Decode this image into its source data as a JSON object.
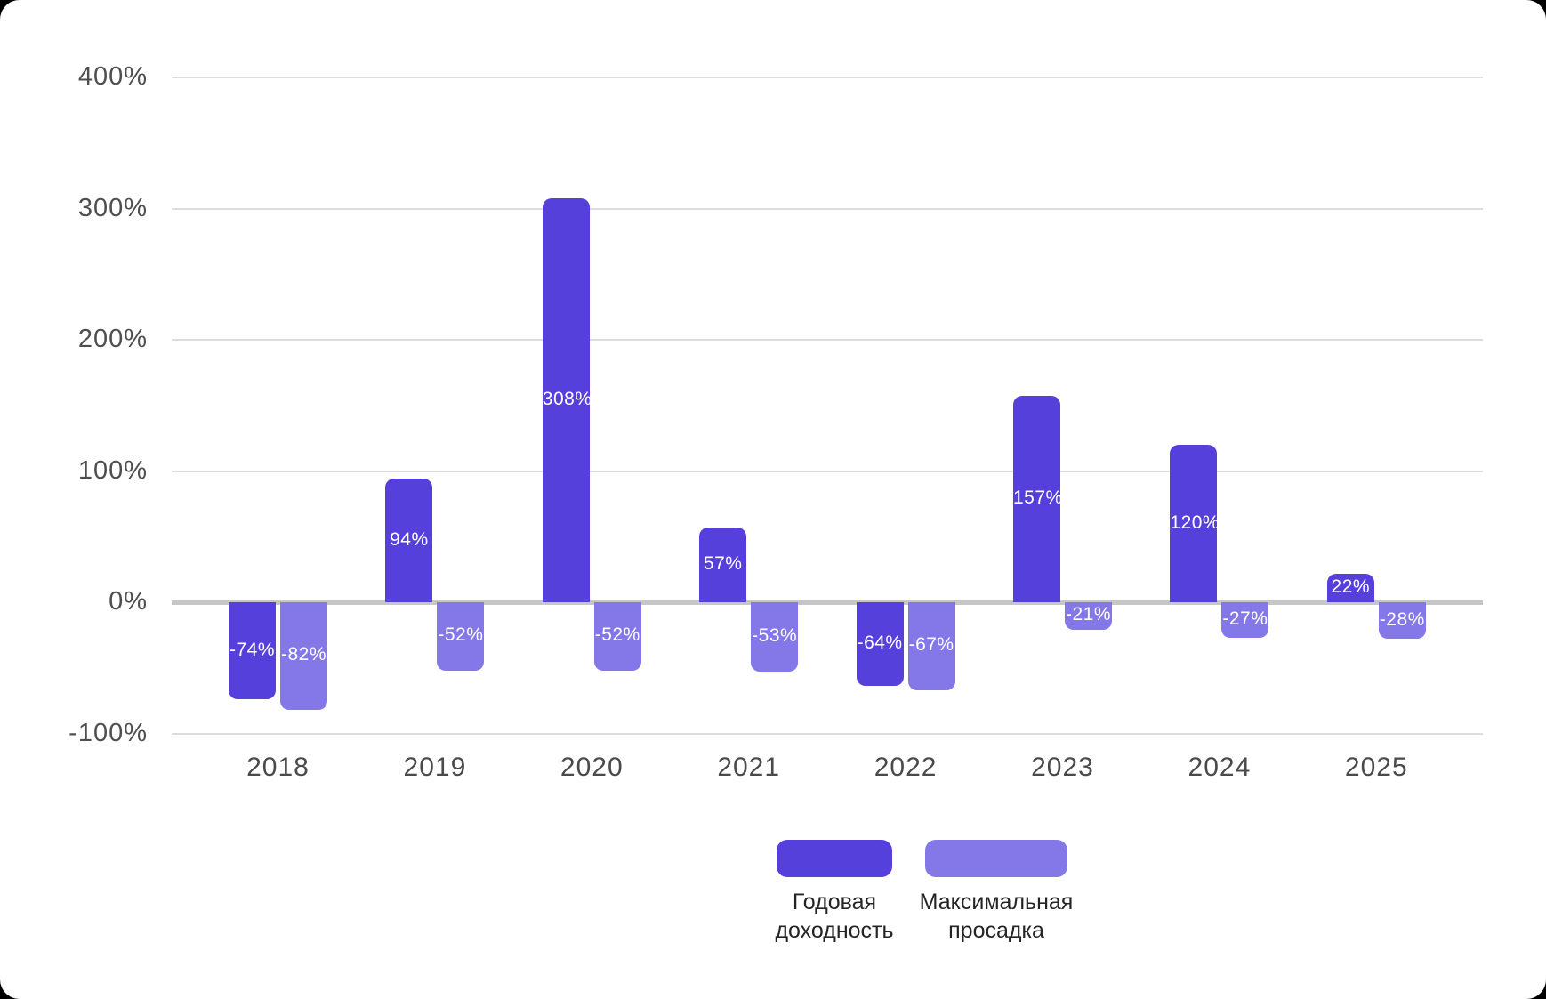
{
  "chart_data": {
    "type": "bar",
    "categories": [
      "2018",
      "2019",
      "2020",
      "2021",
      "2022",
      "2023",
      "2024",
      "2025"
    ],
    "series": [
      {
        "name": "Годовая доходность",
        "color": "#5640DC",
        "values": [
          -74,
          94,
          308,
          57,
          -64,
          157,
          120,
          22
        ],
        "labels": [
          "-74%",
          "94%",
          "308%",
          "57%",
          "-64%",
          "157%",
          "120%",
          "22%"
        ]
      },
      {
        "name": "Максимальная просадка",
        "color": "#8478E8",
        "values": [
          -82,
          -52,
          -52,
          -53,
          -67,
          -21,
          -27,
          -28
        ],
        "labels": [
          "-82%",
          "-52%",
          "-52%",
          "-53%",
          "-67%",
          "-21%",
          "-27%",
          "-28%"
        ]
      }
    ],
    "y_axis": {
      "ticks": [
        {
          "label": "400%",
          "value": 400
        },
        {
          "label": "300%",
          "value": 300
        },
        {
          "label": "200%",
          "value": 200
        },
        {
          "label": "100%",
          "value": 100
        },
        {
          "label": "0%",
          "value": 0
        },
        {
          "label": "-100%",
          "value": -100
        }
      ],
      "ylim": [
        -100,
        400
      ]
    },
    "title": "",
    "xlabel": "",
    "ylabel": "",
    "grid": true,
    "legend_position": "bottom",
    "colors": {
      "value_label": "#ffffff",
      "axis_text": "#4f4f4f",
      "gridline": "#dcdcdc",
      "zero_line": "#c6c6c6",
      "legend_text": "#242424",
      "card_background": "#ffffff",
      "page_background": "#000000"
    }
  }
}
